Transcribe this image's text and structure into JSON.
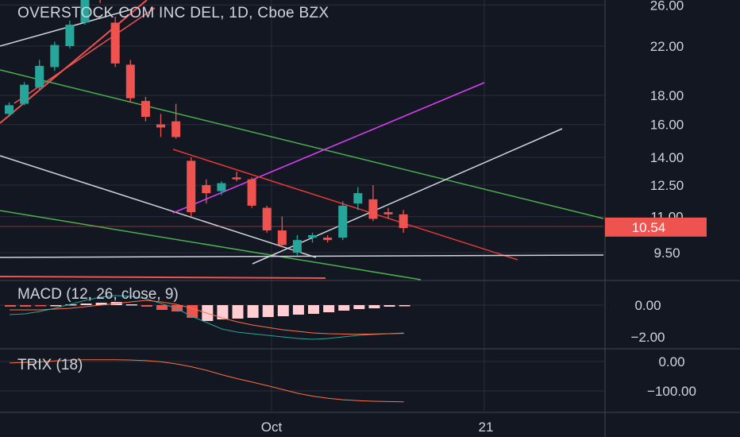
{
  "header": {
    "title": "OVERSTOCK COM INC DEL, 1D, Cboe BZX"
  },
  "macd": {
    "label": "MACD (12, 26, close, 9)"
  },
  "trix": {
    "label": "TRIX (18)"
  },
  "colors": {
    "background": "#131722",
    "up": "#26a69a",
    "down": "#ef5350",
    "grid": "#2a2e39",
    "text": "#d1d4dc",
    "price_badge": "#ef5350"
  },
  "chart_data": [
    {
      "type": "candlestick",
      "axis_scale": "log",
      "y_ticks": [
        "26.00",
        "22.00",
        "18.00",
        "16.00",
        "14.00",
        "12.50",
        "11.00",
        "9.50"
      ],
      "x_ticks": [
        "Oct",
        "21"
      ],
      "last_price": "10.54",
      "candles": [
        {
          "o": 16.7,
          "h": 17.5,
          "c": 17.3,
          "l": 16.5
        },
        {
          "o": 17.4,
          "h": 19.0,
          "c": 18.8,
          "l": 17.3
        },
        {
          "o": 18.6,
          "h": 20.8,
          "c": 20.3,
          "l": 18.4
        },
        {
          "o": 20.2,
          "h": 22.4,
          "c": 22.1,
          "l": 19.9
        },
        {
          "o": 22.0,
          "h": 24.4,
          "c": 24.0,
          "l": 21.8
        },
        {
          "o": 24.2,
          "h": 28.0,
          "c": 27.5,
          "l": 24.0
        },
        {
          "o": 27.5,
          "h": 27.8,
          "c": 27.3,
          "l": 26.2
        },
        {
          "o": 24.2,
          "h": 24.8,
          "c": 20.5,
          "l": 20.2
        },
        {
          "o": 20.4,
          "h": 20.8,
          "c": 17.8,
          "l": 17.5
        },
        {
          "o": 17.6,
          "h": 17.9,
          "c": 16.5,
          "l": 16.2
        },
        {
          "o": 16.0,
          "h": 16.7,
          "c": 15.8,
          "l": 15.2
        },
        {
          "o": 16.2,
          "h": 17.4,
          "c": 15.2,
          "l": 15.1
        },
        {
          "o": 13.8,
          "h": 14.0,
          "c": 11.2,
          "l": 11.0
        },
        {
          "o": 12.5,
          "h": 12.8,
          "c": 12.1,
          "l": 11.6
        },
        {
          "o": 12.2,
          "h": 12.7,
          "c": 12.6,
          "l": 12.0
        },
        {
          "o": 12.9,
          "h": 13.2,
          "c": 12.8,
          "l": 12.7
        },
        {
          "o": 12.8,
          "h": 12.9,
          "c": 11.5,
          "l": 11.4
        },
        {
          "o": 11.4,
          "h": 11.5,
          "c": 10.4,
          "l": 10.3
        },
        {
          "o": 10.4,
          "h": 11.0,
          "c": 9.8,
          "l": 9.7
        },
        {
          "o": 9.5,
          "h": 10.2,
          "c": 10.0,
          "l": 9.4
        },
        {
          "o": 10.1,
          "h": 10.3,
          "c": 10.2,
          "l": 9.9
        },
        {
          "o": 10.1,
          "h": 10.2,
          "c": 10.0,
          "l": 9.9
        },
        {
          "o": 10.1,
          "h": 11.7,
          "c": 11.5,
          "l": 10.0
        },
        {
          "o": 11.6,
          "h": 12.4,
          "c": 12.1,
          "l": 11.3
        },
        {
          "o": 11.8,
          "h": 12.5,
          "c": 10.9,
          "l": 10.8
        },
        {
          "o": 11.2,
          "h": 11.4,
          "c": 11.1,
          "l": 10.9
        },
        {
          "o": 11.1,
          "h": 11.3,
          "c": 10.5,
          "l": 10.3
        }
      ]
    },
    {
      "type": "bar",
      "y_ticks": [
        "0.00",
        "−2.00"
      ],
      "histogram": [
        -0.1,
        -0.1,
        -0.05,
        0,
        0.05,
        0.1,
        0.15,
        0.2,
        0.05,
        -0.1,
        -0.3,
        -0.4,
        -0.8,
        -1.0,
        -0.9,
        -0.85,
        -0.8,
        -0.75,
        -0.7,
        -0.6,
        -0.55,
        -0.45,
        -0.35,
        -0.25,
        -0.2,
        -0.1,
        -0.05
      ],
      "macd_line": [
        -0.6,
        -0.55,
        -0.4,
        -0.2,
        0.05,
        0.3,
        0.5,
        0.6,
        0.55,
        0.4,
        0.1,
        -0.2,
        -0.7,
        -1.1,
        -1.5,
        -1.7,
        -1.8,
        -1.9,
        -2.0,
        -2.1,
        -2.15,
        -2.1,
        -2.0,
        -1.9,
        -1.85,
        -1.8,
        -1.75
      ],
      "signal_line": [
        -0.3,
        -0.3,
        -0.3,
        -0.25,
        -0.2,
        -0.1,
        0.0,
        0.1,
        0.2,
        0.3,
        0.2,
        0.05,
        -0.2,
        -0.5,
        -0.8,
        -1.05,
        -1.25,
        -1.4,
        -1.55,
        -1.65,
        -1.75,
        -1.8,
        -1.82,
        -1.83,
        -1.82,
        -1.8,
        -1.78
      ]
    },
    {
      "type": "line",
      "y_ticks": [
        "0.00",
        "−100.00"
      ],
      "trix_line": [
        -5,
        -3,
        -1,
        2,
        5,
        6,
        6,
        6,
        5,
        3,
        -1,
        -8,
        -18,
        -30,
        -45,
        -58,
        -70,
        -82,
        -95,
        -108,
        -118,
        -125,
        -130,
        -133,
        -135,
        -136,
        -137
      ]
    }
  ]
}
